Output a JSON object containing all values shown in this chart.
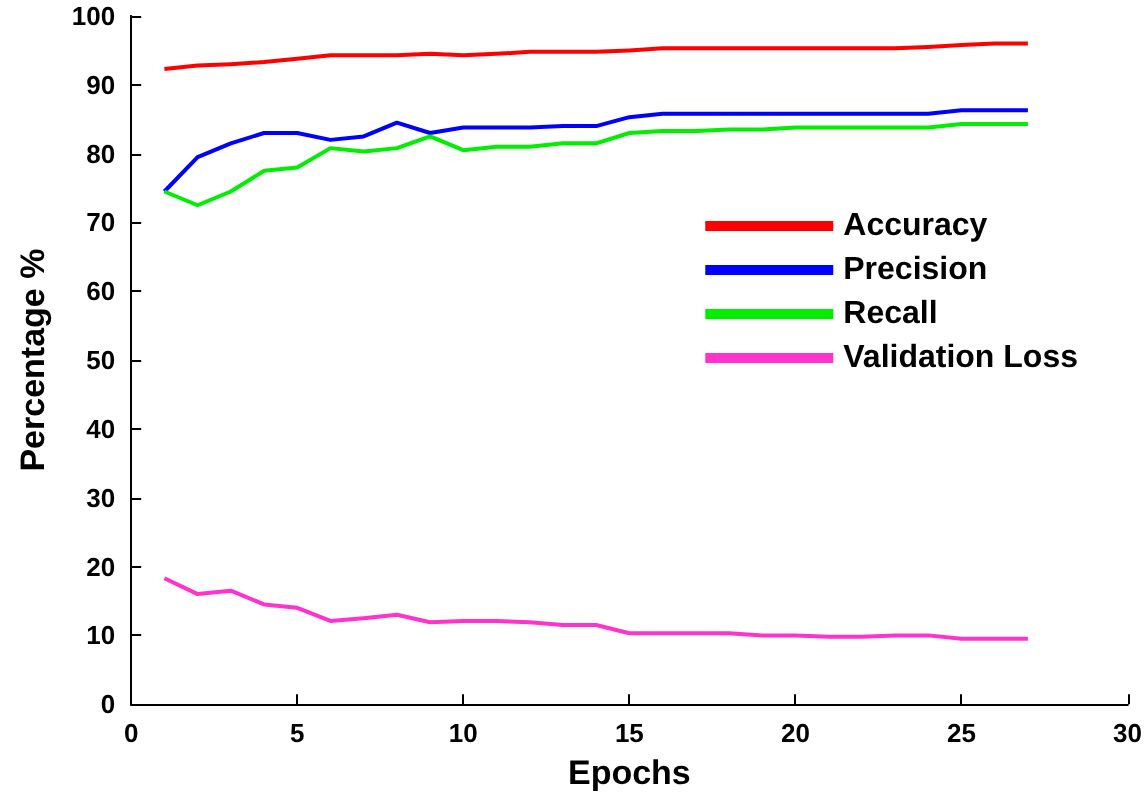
{
  "chart_data": {
    "type": "line",
    "xlabel": "Epochs",
    "ylabel": "Percentage %",
    "x": [
      1,
      2,
      3,
      4,
      5,
      6,
      7,
      8,
      9,
      10,
      11,
      12,
      13,
      14,
      15,
      16,
      17,
      18,
      19,
      20,
      21,
      22,
      23,
      24,
      25,
      26,
      27
    ],
    "series": [
      {
        "name": "Accuracy",
        "color": "#ff0000",
        "values": [
          92.3,
          92.8,
          93,
          93.3,
          93.8,
          94.3,
          94.3,
          94.3,
          94.5,
          94.3,
          94.5,
          94.8,
          94.8,
          94.8,
          95,
          95.3,
          95.3,
          95.3,
          95.3,
          95.3,
          95.3,
          95.3,
          95.3,
          95.5,
          95.8,
          96,
          96
        ]
      },
      {
        "name": "Precision",
        "color": "#0000ff",
        "values": [
          74.5,
          79.5,
          81.5,
          83,
          83,
          82,
          82.5,
          84.5,
          83,
          83.8,
          83.8,
          83.8,
          84,
          84,
          85.3,
          85.8,
          85.8,
          85.8,
          85.8,
          85.8,
          85.8,
          85.8,
          85.8,
          85.8,
          86.3,
          86.3,
          86.3
        ]
      },
      {
        "name": "Recall",
        "color": "#00ee00",
        "values": [
          74.5,
          72.5,
          74.5,
          77.5,
          78,
          80.8,
          80.3,
          80.8,
          82.5,
          80.5,
          81,
          81,
          81.5,
          81.5,
          83,
          83.3,
          83.3,
          83.5,
          83.5,
          83.8,
          83.8,
          83.8,
          83.8,
          83.8,
          84.3,
          84.3,
          84.3
        ]
      },
      {
        "name": "Validation Loss",
        "color": "#ff33cc",
        "values": [
          18.3,
          16,
          16.5,
          14.5,
          14,
          12.1,
          12.5,
          13,
          11.9,
          12.1,
          12.1,
          11.9,
          11.5,
          11.5,
          10.3,
          10.3,
          10.3,
          10.3,
          10,
          10,
          9.8,
          9.8,
          10,
          10,
          9.5,
          9.5,
          9.5
        ]
      }
    ],
    "xlim": [
      0,
      30
    ],
    "xticks": [
      0,
      5,
      10,
      15,
      20,
      25,
      30
    ],
    "ylim": [
      0,
      100
    ],
    "yticks": [
      0,
      10,
      20,
      30,
      40,
      50,
      60,
      70,
      80,
      90,
      100
    ],
    "grid": false,
    "legend": "right",
    "marker": "none",
    "line_style": "solid"
  }
}
